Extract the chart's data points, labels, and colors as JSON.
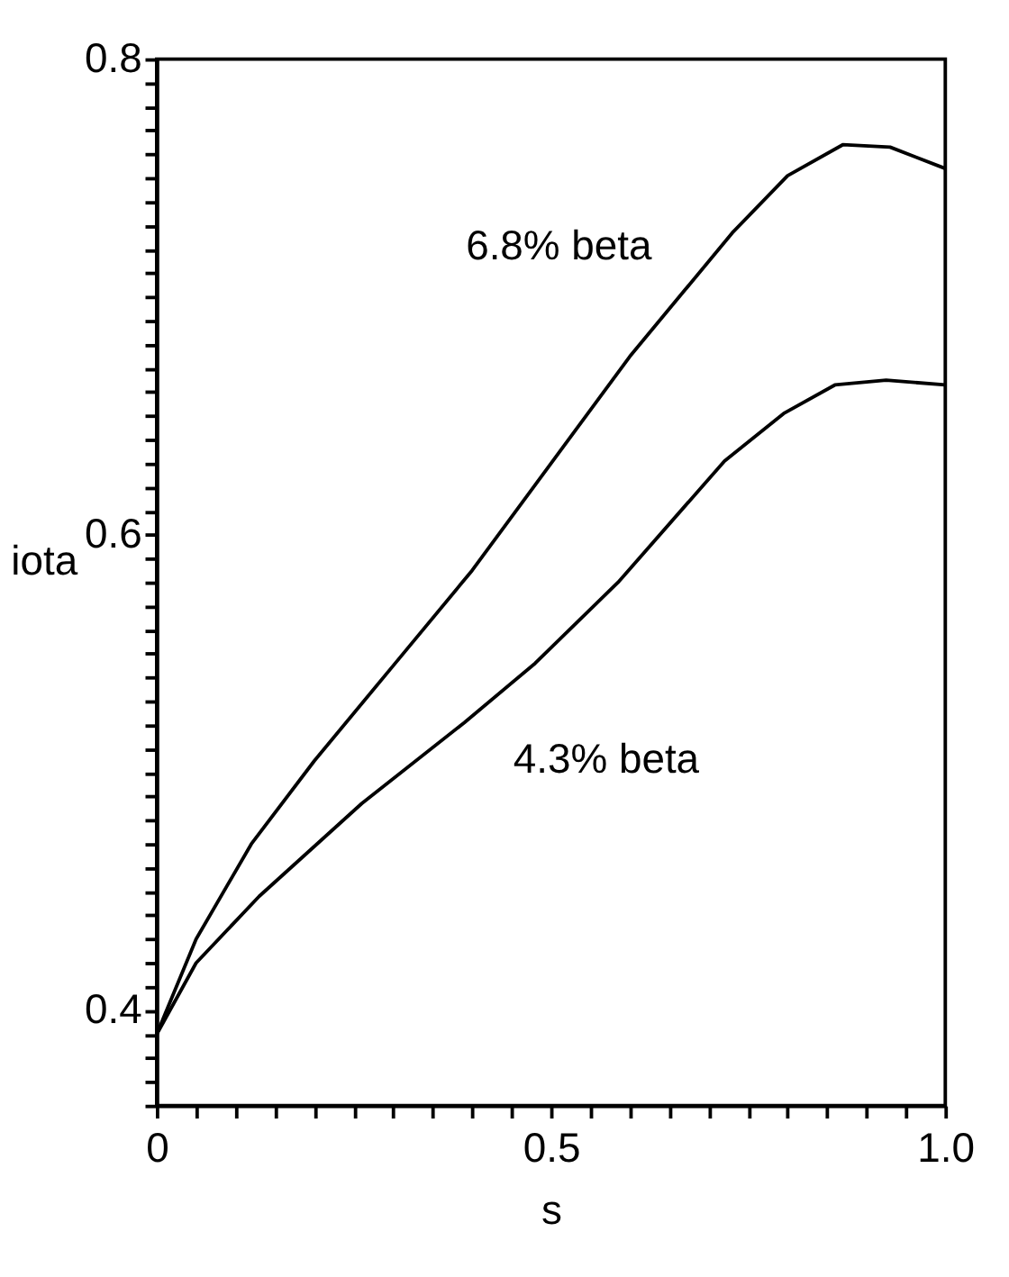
{
  "chart_data": {
    "type": "line",
    "xlabel": "s",
    "ylabel": "iota",
    "xlim": [
      0,
      1.0
    ],
    "ylim": [
      0.36,
      0.8
    ],
    "xticks": [
      0,
      {
        "value": 0.05,
        "label": null
      },
      {
        "value": 0.1,
        "label": null
      },
      {
        "value": 0.15,
        "label": null
      },
      {
        "value": 0.2,
        "label": null
      },
      {
        "value": 0.25,
        "label": null
      },
      {
        "value": 0.3,
        "label": null
      },
      {
        "value": 0.35,
        "label": null
      },
      {
        "value": 0.4,
        "label": null
      },
      {
        "value": 0.45,
        "label": null
      },
      0.5,
      {
        "value": 0.55,
        "label": null
      },
      {
        "value": 0.6,
        "label": null
      },
      {
        "value": 0.65,
        "label": null
      },
      {
        "value": 0.7,
        "label": null
      },
      {
        "value": 0.75,
        "label": null
      },
      {
        "value": 0.8,
        "label": null
      },
      {
        "value": 0.85,
        "label": null
      },
      {
        "value": 0.9,
        "label": null
      },
      {
        "value": 0.95,
        "label": null
      },
      {
        "value": 1.0,
        "label": "1.0"
      }
    ],
    "yticks": [
      {
        "value": 0.36,
        "label": null
      },
      {
        "value": 0.37,
        "label": null
      },
      {
        "value": 0.38,
        "label": null
      },
      {
        "value": 0.39,
        "label": null
      },
      0.4,
      {
        "value": 0.41,
        "label": null
      },
      {
        "value": 0.42,
        "label": null
      },
      {
        "value": 0.43,
        "label": null
      },
      {
        "value": 0.44,
        "label": null
      },
      {
        "value": 0.45,
        "label": null
      },
      {
        "value": 0.46,
        "label": null
      },
      {
        "value": 0.47,
        "label": null
      },
      {
        "value": 0.48,
        "label": null
      },
      {
        "value": 0.49,
        "label": null
      },
      {
        "value": 0.5,
        "label": null
      },
      {
        "value": 0.51,
        "label": null
      },
      {
        "value": 0.52,
        "label": null
      },
      {
        "value": 0.53,
        "label": null
      },
      {
        "value": 0.54,
        "label": null
      },
      {
        "value": 0.55,
        "label": null
      },
      {
        "value": 0.56,
        "label": null
      },
      {
        "value": 0.57,
        "label": null
      },
      {
        "value": 0.58,
        "label": null
      },
      {
        "value": 0.59,
        "label": null
      },
      0.6,
      {
        "value": 0.61,
        "label": null
      },
      {
        "value": 0.62,
        "label": null
      },
      {
        "value": 0.63,
        "label": null
      },
      {
        "value": 0.64,
        "label": null
      },
      {
        "value": 0.65,
        "label": null
      },
      {
        "value": 0.66,
        "label": null
      },
      {
        "value": 0.67,
        "label": null
      },
      {
        "value": 0.68,
        "label": null
      },
      {
        "value": 0.69,
        "label": null
      },
      {
        "value": 0.7,
        "label": null
      },
      {
        "value": 0.71,
        "label": null
      },
      {
        "value": 0.72,
        "label": null
      },
      {
        "value": 0.73,
        "label": null
      },
      {
        "value": 0.74,
        "label": null
      },
      {
        "value": 0.75,
        "label": null
      },
      {
        "value": 0.76,
        "label": null
      },
      {
        "value": 0.77,
        "label": null
      },
      {
        "value": 0.78,
        "label": null
      },
      {
        "value": 0.79,
        "label": null
      },
      0.8
    ],
    "grid": false,
    "legend": false,
    "line_style": "solid",
    "series": [
      {
        "color": "#000000",
        "x": [
          0,
          0.05,
          0.12,
          0.2,
          0.3,
          0.4,
          0.5,
          0.6,
          0.67,
          0.73,
          0.8,
          0.87,
          0.93,
          1.0
        ],
        "values": [
          0.39,
          0.43,
          0.47,
          0.505,
          0.545,
          0.585,
          0.63,
          0.675,
          0.703,
          0.727,
          0.751,
          0.764,
          0.763,
          0.754
        ]
      },
      {
        "color": "#000000",
        "x": [
          0,
          0.05,
          0.13,
          0.26,
          0.39,
          0.48,
          0.585,
          0.72,
          0.795,
          0.86,
          0.925,
          1.0
        ],
        "values": [
          0.39,
          0.42,
          0.448,
          0.487,
          0.521,
          0.546,
          0.58,
          0.631,
          0.651,
          0.663,
          0.665,
          0.663
        ]
      }
    ],
    "annotations": [
      "6.8% beta",
      "4.3% beta"
    ]
  }
}
